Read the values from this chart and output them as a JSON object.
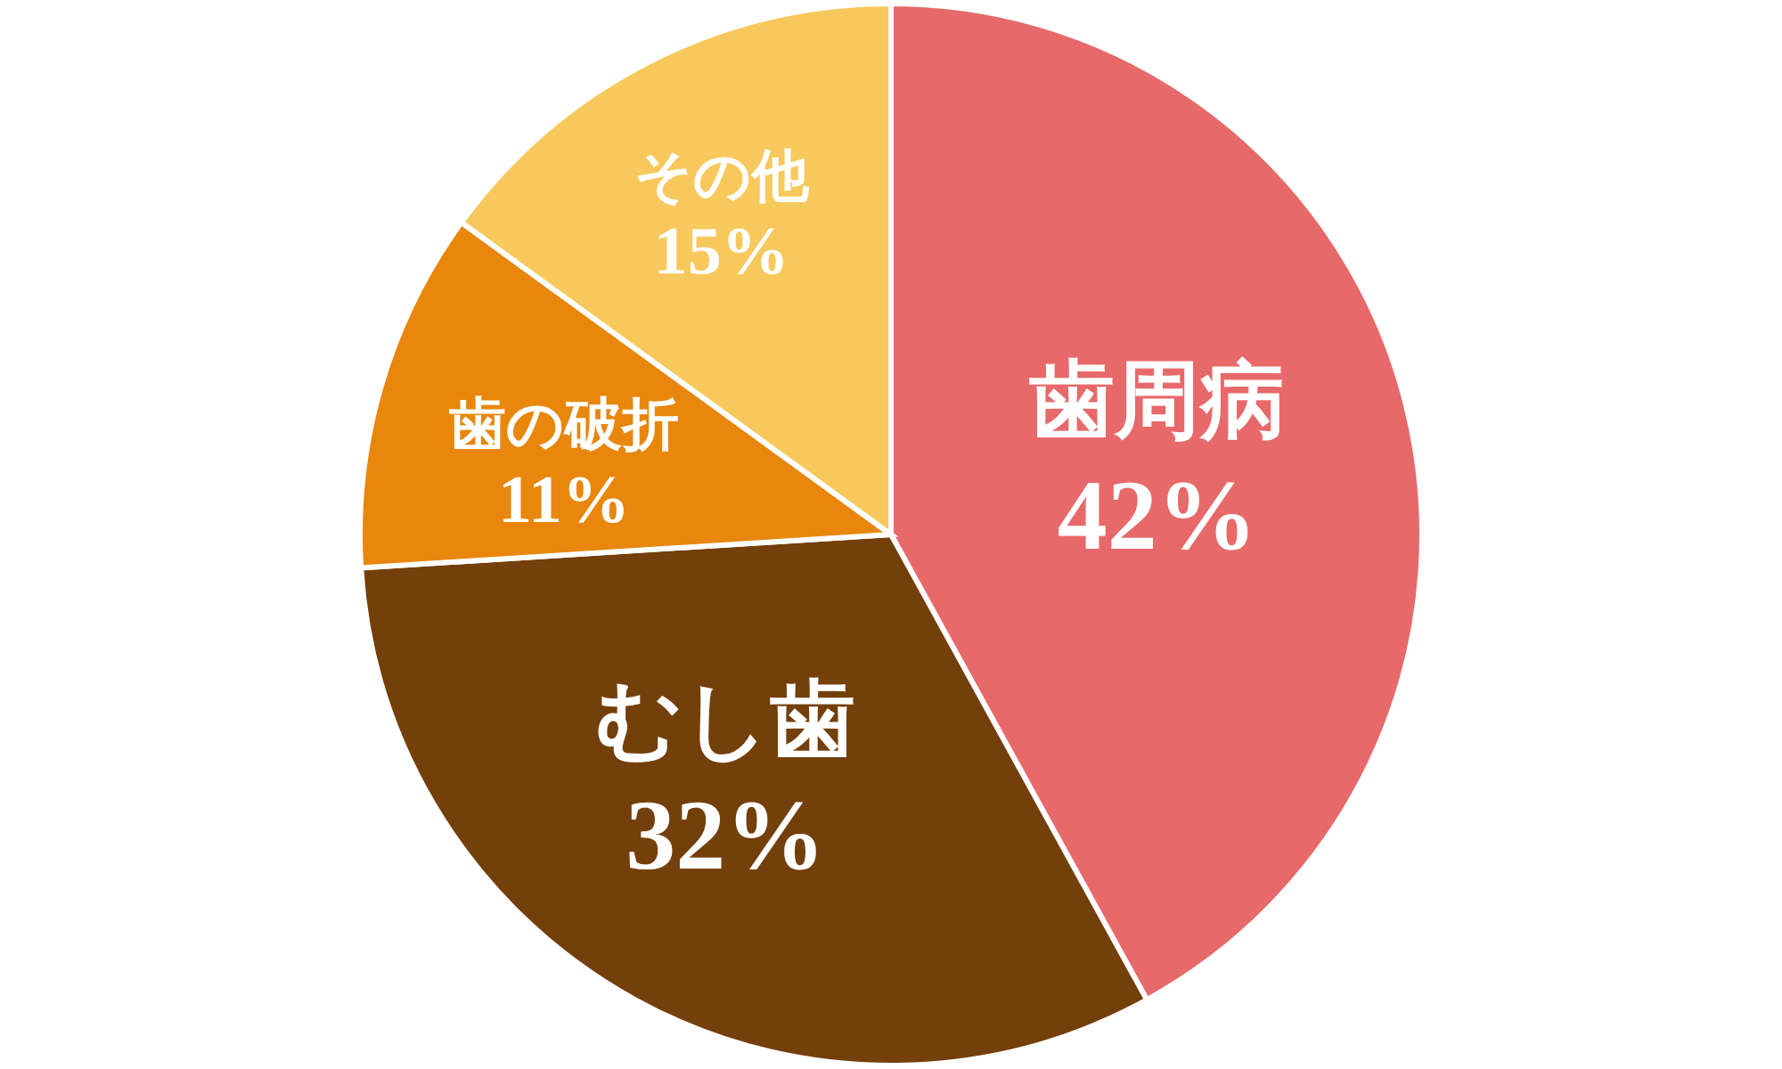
{
  "chart_data": {
    "type": "pie",
    "categories": [
      "歯周病",
      "むし歯",
      "歯の破折",
      "その他"
    ],
    "values": [
      42,
      32,
      11,
      15
    ],
    "colors": [
      "#e8696a",
      "#733f0b",
      "#e8870c",
      "#f7c95c"
    ],
    "value_labels": [
      "42%",
      "32%",
      "11%",
      "15%"
    ]
  }
}
